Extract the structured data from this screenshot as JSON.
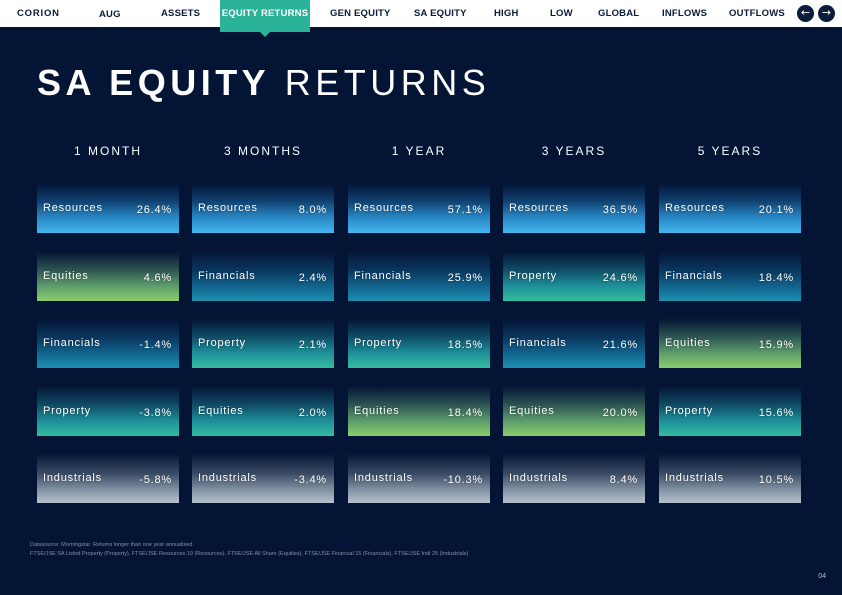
{
  "nav": {
    "brand": "CORION",
    "month": "AUG",
    "items": [
      "ASSETS",
      "EQUITY RETURNS",
      "GEN EQUITY",
      "SA EQUITY",
      "HIGH",
      "LOW",
      "GLOBAL",
      "INFLOWS",
      "OUTFLOWS"
    ],
    "active_item": "EQUITY RETURNS",
    "prev_icon": "arrow-left-icon",
    "next_icon": "arrow-right-icon"
  },
  "title": {
    "bold": "SA EQUITY",
    "light": "RETURNS"
  },
  "columns": [
    {
      "header": "1 MONTH",
      "rows": [
        {
          "label": "Resources",
          "value": "26.4%",
          "color": "resources"
        },
        {
          "label": "Equities",
          "value": "4.6%",
          "color": "equities"
        },
        {
          "label": "Financials",
          "value": "-1.4%",
          "color": "financials"
        },
        {
          "label": "Property",
          "value": "-3.8%",
          "color": "property"
        },
        {
          "label": "Industrials",
          "value": "-5.8%",
          "color": "industrials"
        }
      ]
    },
    {
      "header": "3 MONTHS",
      "rows": [
        {
          "label": "Resources",
          "value": "8.0%",
          "color": "resources"
        },
        {
          "label": "Financials",
          "value": "2.4%",
          "color": "financials"
        },
        {
          "label": "Property",
          "value": "2.1%",
          "color": "property"
        },
        {
          "label": "Equities",
          "value": "2.0%",
          "color": "property"
        },
        {
          "label": "Industrials",
          "value": "-3.4%",
          "color": "industrials"
        }
      ]
    },
    {
      "header": "1 YEAR",
      "rows": [
        {
          "label": "Resources",
          "value": "57.1%",
          "color": "resources"
        },
        {
          "label": "Financials",
          "value": "25.9%",
          "color": "financials"
        },
        {
          "label": "Property",
          "value": "18.5%",
          "color": "property"
        },
        {
          "label": "Equities",
          "value": "18.4%",
          "color": "equities"
        },
        {
          "label": "Industrials",
          "value": "-10.3%",
          "color": "industrials"
        }
      ]
    },
    {
      "header": "3 YEARS",
      "rows": [
        {
          "label": "Resources",
          "value": "36.5%",
          "color": "resources"
        },
        {
          "label": "Property",
          "value": "24.6%",
          "color": "property"
        },
        {
          "label": "Financials",
          "value": "21.6%",
          "color": "financials"
        },
        {
          "label": "Equities",
          "value": "20.0%",
          "color": "equities"
        },
        {
          "label": "Industrials",
          "value": "8.4%",
          "color": "industrials"
        }
      ]
    },
    {
      "header": "5 YEARS",
      "rows": [
        {
          "label": "Resources",
          "value": "20.1%",
          "color": "resources"
        },
        {
          "label": "Financials",
          "value": "18.4%",
          "color": "financials"
        },
        {
          "label": "Equities",
          "value": "15.9%",
          "color": "equities"
        },
        {
          "label": "Property",
          "value": "15.6%",
          "color": "property"
        },
        {
          "label": "Industrials",
          "value": "10.5%",
          "color": "industrials"
        }
      ]
    }
  ],
  "colors": {
    "background": "#031434",
    "accent": "#2bb39a",
    "resources": "#42b7ee",
    "financials": "#1d8fb0",
    "property": "#33bd9e",
    "equities": "#8bcd6c",
    "industrials": "#b7c2cf"
  },
  "footer": {
    "line1": "Datasource: Morningstar. Returns longer than one year annualised.",
    "line2": "FTSE/JSE SA Listed Property (Property), FTSE/JSE Resources 10 (Resources), FTSE/JSE All Share (Equities), FTSE/JSE Financial 15 (Financials), FTSE/JSE Indi 25 (Industrials)",
    "page": "04"
  }
}
